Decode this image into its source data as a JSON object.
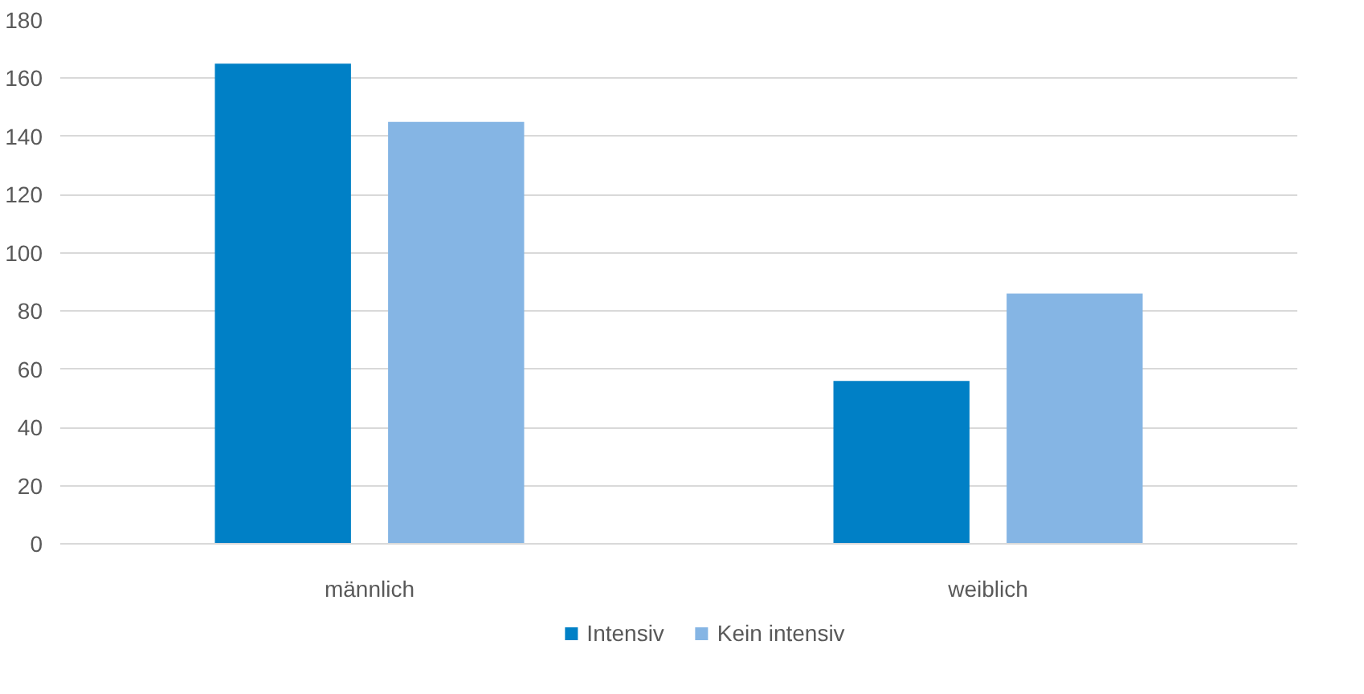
{
  "chart_data": {
    "type": "bar",
    "categories": [
      "männlich",
      "weiblich"
    ],
    "series": [
      {
        "name": "Intensiv",
        "color": "#0080c6",
        "values": [
          165,
          56
        ]
      },
      {
        "name": "Kein intensiv",
        "color": "#85b5e4",
        "values": [
          145,
          86
        ]
      }
    ],
    "ylim": [
      0,
      180
    ],
    "yticks": [
      0,
      20,
      40,
      60,
      80,
      100,
      120,
      140,
      160,
      180
    ],
    "grid": "y",
    "legend": "bottom"
  }
}
